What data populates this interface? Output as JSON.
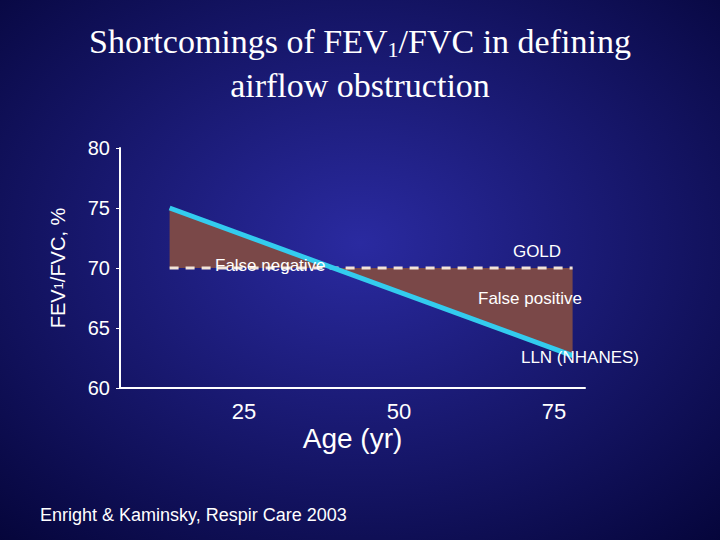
{
  "chart_data": {
    "type": "line",
    "title": "Shortcomings of FEV1/FVC in defining\nairflow obstruction",
    "x_label": "Age (yr)",
    "y_label": "FEV1/FVC, %",
    "source": "Enright & Kaminsky, Respir Care 2003",
    "annotations": [
      "False negative",
      "False positive"
    ],
    "x": [
      13,
      78
    ],
    "series": [
      {
        "name": "GOLD",
        "color": "#f2e4d8",
        "line_style": "dashed",
        "values": [
          70,
          70
        ]
      },
      {
        "name": "LLN (NHANES)",
        "color": "#33ccee",
        "line_style": "solid",
        "values": [
          75,
          62.7
        ]
      }
    ],
    "xlim": [
      5,
      80
    ],
    "ylim": [
      60,
      80
    ],
    "xticks": [
      25,
      50,
      75
    ],
    "yticks": [
      60,
      65,
      70,
      75,
      80
    ],
    "grid": false
  }
}
